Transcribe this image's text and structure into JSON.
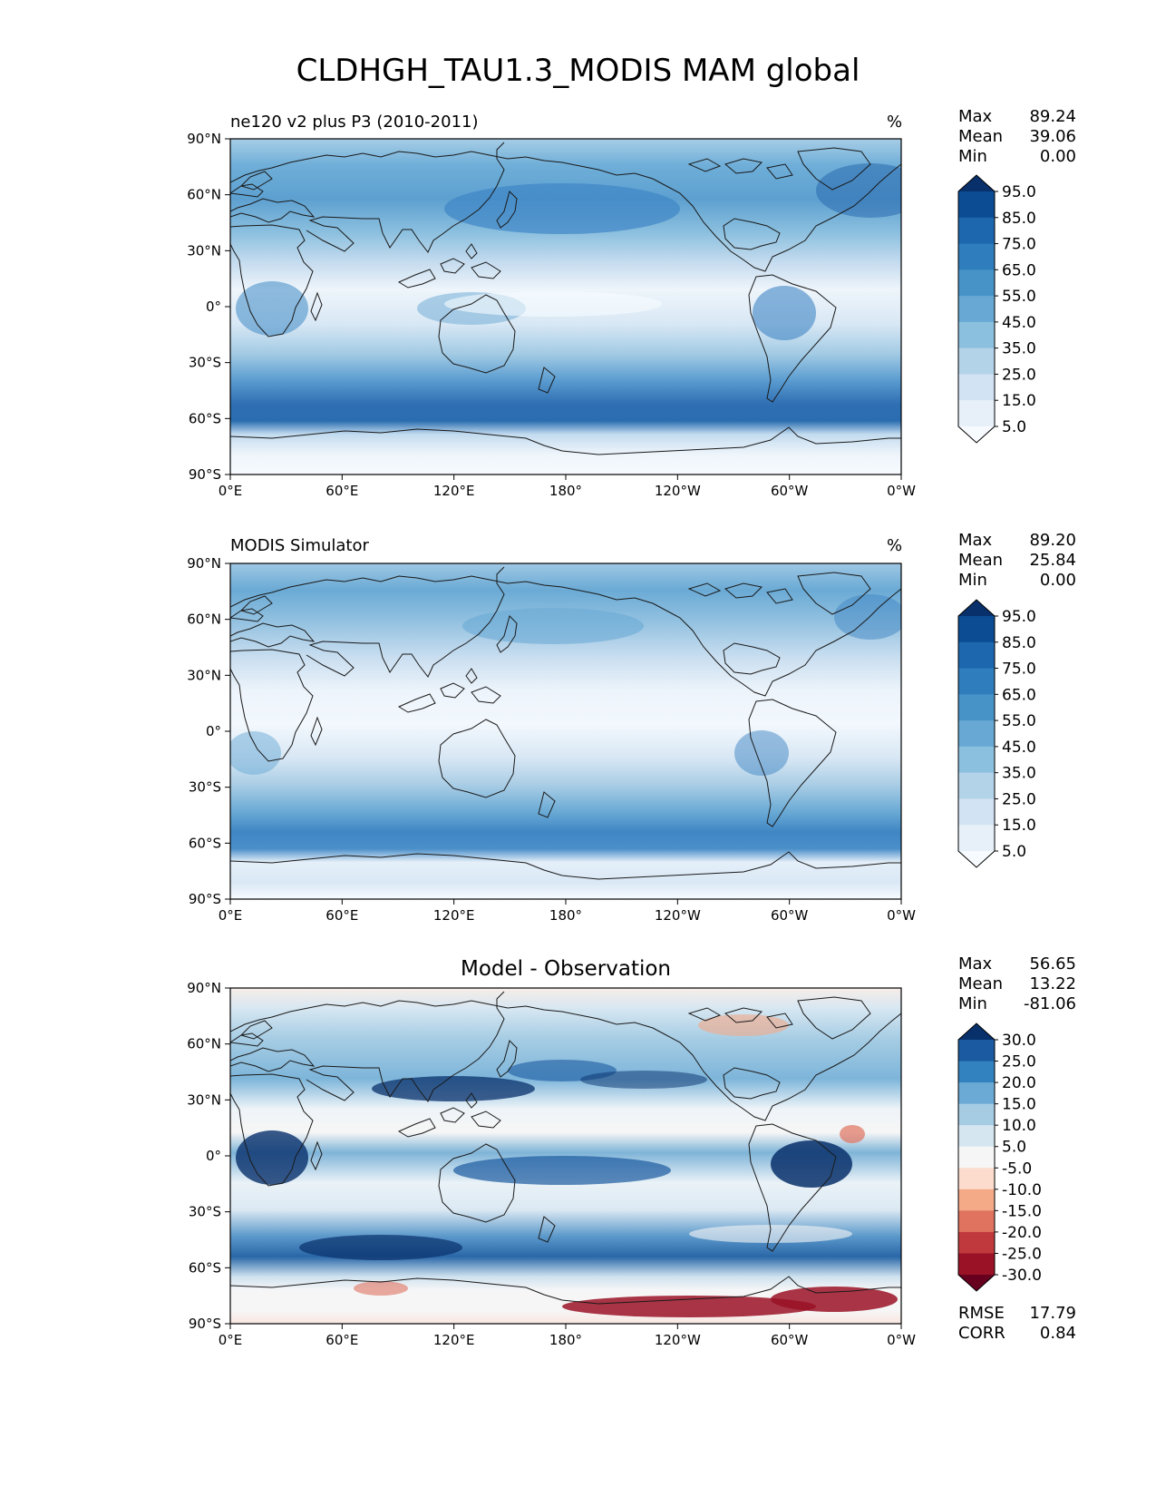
{
  "title": "CLDHGH_TAU1.3_MODIS MAM global",
  "axes": {
    "lat_ticks": [
      "90°N",
      "60°N",
      "30°N",
      "0°",
      "30°S",
      "60°S",
      "90°S"
    ],
    "lon_ticks": [
      "0°E",
      "60°E",
      "120°E",
      "180°",
      "120°W",
      "60°W",
      "0°W"
    ]
  },
  "panels": [
    {
      "label": "ne120 v2 plus P3 (2010-2011)",
      "units": "%",
      "stats": [
        {
          "name": "Max",
          "value": "89.24"
        },
        {
          "name": "Mean",
          "value": "39.06"
        },
        {
          "name": "Min",
          "value": "0.00"
        }
      ],
      "colorbar": {
        "labels": [
          "95.0",
          "85.0",
          "75.0",
          "65.0",
          "55.0",
          "45.0",
          "35.0",
          "25.0",
          "15.0",
          "5.0"
        ],
        "colors": [
          "#08306b",
          "#0b4c93",
          "#1c67ae",
          "#2f7dbc",
          "#4793c8",
          "#67a9d4",
          "#8cc0df",
          "#b3d3e8",
          "#d2e3f3",
          "#e7f0f9",
          "#f7fbff"
        ]
      }
    },
    {
      "label": "MODIS Simulator",
      "units": "%",
      "stats": [
        {
          "name": "Max",
          "value": "89.20"
        },
        {
          "name": "Mean",
          "value": "25.84"
        },
        {
          "name": "Min",
          "value": "0.00"
        }
      ],
      "colorbar": {
        "labels": [
          "95.0",
          "85.0",
          "75.0",
          "65.0",
          "55.0",
          "45.0",
          "35.0",
          "25.0",
          "15.0",
          "5.0"
        ],
        "colors": [
          "#08306b",
          "#0b4c93",
          "#1c67ae",
          "#2f7dbc",
          "#4793c8",
          "#67a9d4",
          "#8cc0df",
          "#b3d3e8",
          "#d2e3f3",
          "#e7f0f9",
          "#f7fbff"
        ]
      }
    },
    {
      "label": "Model - Observation",
      "units": "",
      "stats": [
        {
          "name": "Max",
          "value": "56.65"
        },
        {
          "name": "Mean",
          "value": "13.22"
        },
        {
          "name": "Min",
          "value": "-81.06"
        }
      ],
      "footer_stats": [
        {
          "name": "RMSE",
          "value": "17.79"
        },
        {
          "name": "CORR",
          "value": "0.84"
        }
      ],
      "colorbar": {
        "labels": [
          "30.0",
          "25.0",
          "20.0",
          "15.0",
          "10.0",
          "5.0",
          "-5.0",
          "-10.0",
          "-15.0",
          "-20.0",
          "-25.0",
          "-30.0"
        ],
        "colors": [
          "#08306b",
          "#1b5aa0",
          "#3282bf",
          "#6aaad5",
          "#a6cce4",
          "#d5e6f1",
          "#f6f6f6",
          "#fbdccd",
          "#f4a987",
          "#df7360",
          "#c03a3d",
          "#9a1226",
          "#67001f"
        ]
      }
    }
  ]
}
